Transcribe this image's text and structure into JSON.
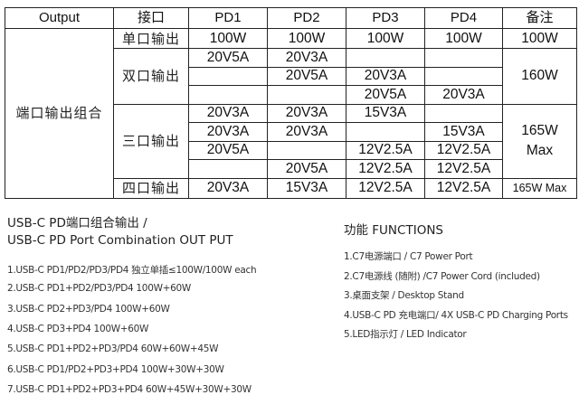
{
  "table": {
    "headers": [
      "Output",
      "接口",
      "PD1",
      "PD2",
      "PD3",
      "PD4",
      "备注"
    ],
    "row_label": "端口输出组合",
    "groups": [
      {
        "label": "单口输出",
        "note": "100W",
        "rows": [
          [
            "100W",
            "100W",
            "100W",
            "100W"
          ]
        ]
      },
      {
        "label": "双口输出",
        "note": "160W",
        "rows": [
          [
            "20V5A",
            "20V3A",
            "",
            ""
          ],
          [
            "",
            "20V5A",
            "20V3A",
            ""
          ],
          [
            "",
            "",
            "20V5A",
            "20V3A"
          ]
        ]
      },
      {
        "label": "三口输出",
        "note": "165W Max",
        "rows": [
          [
            "20V3A",
            "20V3A",
            "15V3A",
            ""
          ],
          [
            "20V3A",
            "20V3A",
            "",
            "15V3A"
          ],
          [
            "20V5A",
            "",
            "12V2.5A",
            "12V2.5A"
          ],
          [
            "",
            "20V5A",
            "12V2.5A",
            "12V2.5A"
          ]
        ]
      },
      {
        "label": "四口输出",
        "note": "165W Max",
        "rows": [
          [
            "20V3A",
            "15V3A",
            "12V2.5A",
            "12V2.5A"
          ]
        ]
      }
    ]
  },
  "combination": {
    "title_line1": "USB-C PD端口组合输出 /",
    "title_line2": "USB-C PD Port Combination OUT PUT",
    "items": [
      "1.USB-C PD1/PD2/PD3/PD4 独立单插≤100W/100W each",
      "2.USB-C PD1+PD2/PD3/PD4  100W+60W",
      "3.USB-C PD2+PD3/PD4  100W+60W",
      "4.USB-C PD3+PD4  100W+60W",
      "5.USB-C PD1+PD2+PD3/PD4  60W+60W+45W",
      "6.USB-C PD1/PD2+PD3+PD4  100W+30W+30W",
      "7.USB-C PD1+PD2+PD3+PD4  60W+45W+30W+30W"
    ]
  },
  "functions": {
    "title": "功能  FUNCTIONS",
    "items": [
      "1.C7电源端口 / C7 Power Port",
      "2.C7电源线 (随附) /C7 Power Cord (included)",
      "3.桌面支架 / Desktop Stand",
      "4.USB-C PD 充电端口/ 4X USB-C PD Charging Ports",
      "5.LED指示灯 / LED Indicator"
    ]
  }
}
